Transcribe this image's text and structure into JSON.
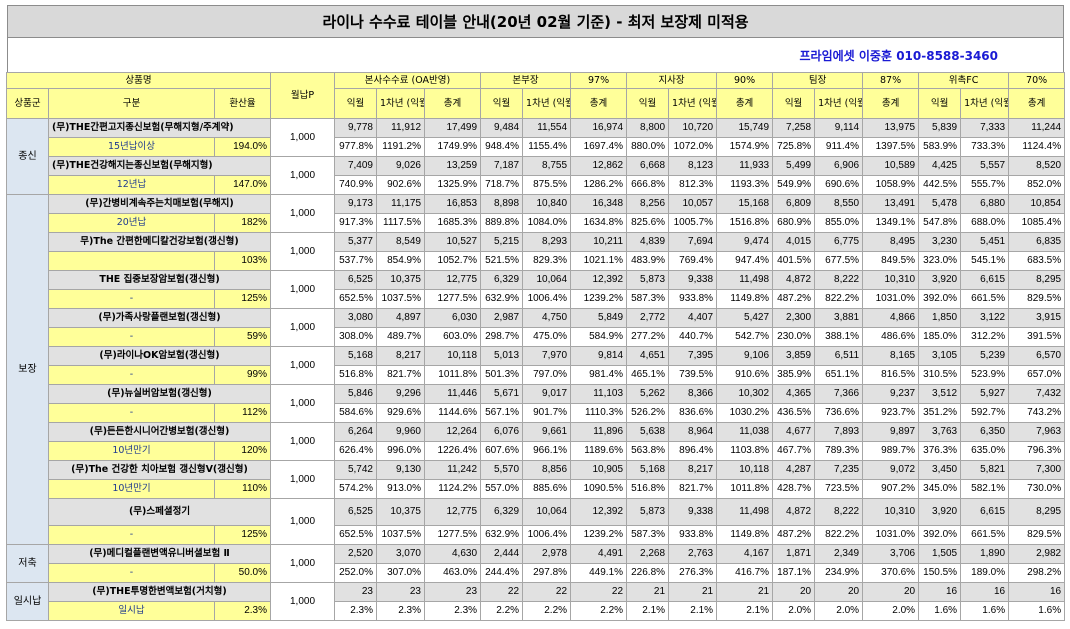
{
  "title": "라이나 수수료 테이블 안내(20년 02월 기준) - 최저 보장제 미적용",
  "contact": "프라임에셋 이중훈 010-8588-3460",
  "header": {
    "product_name": "상품명",
    "monthly_p": "월납P",
    "group": "상품군",
    "category": "구분",
    "conversion": "환산율",
    "col_first": "익월",
    "col_year1": "1차년\n(익월포함)",
    "col_total": "총계",
    "levels": [
      {
        "name": "본사수수료 (OA반영)"
      },
      {
        "name": "본부장",
        "rate": "97%"
      },
      {
        "name": "지사장",
        "rate": "90%"
      },
      {
        "name": "팀장",
        "rate": "87%"
      },
      {
        "name": "위촉FC",
        "rate": "70%"
      }
    ]
  },
  "colors": {
    "header_bg": "#ffff99",
    "title_bg": "#d9d9d9",
    "amount_row_bg": "#e1e1e1",
    "group_bg": "#dce6f1",
    "contact_text": "#1a1ad4"
  },
  "groups": [
    {
      "name": "종신",
      "products": [
        {
          "name": "(무)THE간편고지종신보험(무해지형/주계약)",
          "monthly_p": "1,000",
          "term": "15년납이상",
          "rate": "194.0%",
          "amounts": [
            "9,778",
            "11,912",
            "17,499",
            "9,484",
            "11,554",
            "16,974",
            "8,800",
            "10,720",
            "15,749",
            "7,258",
            "9,114",
            "13,975",
            "5,839",
            "7,333",
            "11,244"
          ],
          "percents": [
            "977.8%",
            "1191.2%",
            "1749.9%",
            "948.4%",
            "1155.4%",
            "1697.4%",
            "880.0%",
            "1072.0%",
            "1574.9%",
            "725.8%",
            "911.4%",
            "1397.5%",
            "583.9%",
            "733.3%",
            "1124.4%"
          ]
        },
        {
          "name": "(무)THE건강해지는종신보험(무해지형)",
          "monthly_p": "1,000",
          "term": "12년납",
          "rate": "147.0%",
          "amounts": [
            "7,409",
            "9,026",
            "13,259",
            "7,187",
            "8,755",
            "12,862",
            "6,668",
            "8,123",
            "11,933",
            "5,499",
            "6,906",
            "10,589",
            "4,425",
            "5,557",
            "8,520"
          ],
          "percents": [
            "740.9%",
            "902.6%",
            "1325.9%",
            "718.7%",
            "875.5%",
            "1286.2%",
            "666.8%",
            "812.3%",
            "1193.3%",
            "549.9%",
            "690.6%",
            "1058.9%",
            "442.5%",
            "555.7%",
            "852.0%"
          ]
        }
      ]
    },
    {
      "name": "보장",
      "products": [
        {
          "name": "(무)간병비계속주는치매보험(무해지)",
          "monthly_p": "1,000",
          "term": "20년납",
          "rate": "182%",
          "amounts": [
            "9,173",
            "11,175",
            "16,853",
            "8,898",
            "10,840",
            "16,348",
            "8,256",
            "10,057",
            "15,168",
            "6,809",
            "8,550",
            "13,491",
            "5,478",
            "6,880",
            "10,854"
          ],
          "percents": [
            "917.3%",
            "1117.5%",
            "1685.3%",
            "889.8%",
            "1084.0%",
            "1634.8%",
            "825.6%",
            "1005.7%",
            "1516.8%",
            "680.9%",
            "855.0%",
            "1349.1%",
            "547.8%",
            "688.0%",
            "1085.4%"
          ]
        },
        {
          "name": "무)The 간편한메디칼건강보험(갱신형)",
          "monthly_p": "1,000",
          "term": "",
          "rate": "103%",
          "amounts": [
            "5,377",
            "8,549",
            "10,527",
            "5,215",
            "8,293",
            "10,211",
            "4,839",
            "7,694",
            "9,474",
            "4,015",
            "6,775",
            "8,495",
            "3,230",
            "5,451",
            "6,835"
          ],
          "percents": [
            "537.7%",
            "854.9%",
            "1052.7%",
            "521.5%",
            "829.3%",
            "1021.1%",
            "483.9%",
            "769.4%",
            "947.4%",
            "401.5%",
            "677.5%",
            "849.5%",
            "323.0%",
            "545.1%",
            "683.5%"
          ]
        },
        {
          "name": "THE 집중보장암보험(갱신형)",
          "monthly_p": "1,000",
          "term": "-",
          "rate": "125%",
          "amounts": [
            "6,525",
            "10,375",
            "12,775",
            "6,329",
            "10,064",
            "12,392",
            "5,873",
            "9,338",
            "11,498",
            "4,872",
            "8,222",
            "10,310",
            "3,920",
            "6,615",
            "8,295"
          ],
          "percents": [
            "652.5%",
            "1037.5%",
            "1277.5%",
            "632.9%",
            "1006.4%",
            "1239.2%",
            "587.3%",
            "933.8%",
            "1149.8%",
            "487.2%",
            "822.2%",
            "1031.0%",
            "392.0%",
            "661.5%",
            "829.5%"
          ]
        },
        {
          "name": "(무)가족사랑플랜보험(갱신형)",
          "monthly_p": "1,000",
          "term": "-",
          "rate": "59%",
          "amounts": [
            "3,080",
            "4,897",
            "6,030",
            "2,987",
            "4,750",
            "5,849",
            "2,772",
            "4,407",
            "5,427",
            "2,300",
            "3,881",
            "4,866",
            "1,850",
            "3,122",
            "3,915"
          ],
          "percents": [
            "308.0%",
            "489.7%",
            "603.0%",
            "298.7%",
            "475.0%",
            "584.9%",
            "277.2%",
            "440.7%",
            "542.7%",
            "230.0%",
            "388.1%",
            "486.6%",
            "185.0%",
            "312.2%",
            "391.5%"
          ]
        },
        {
          "name": "(무)라이나OK암보험(갱신형)",
          "monthly_p": "1,000",
          "term": "-",
          "rate": "99%",
          "amounts": [
            "5,168",
            "8,217",
            "10,118",
            "5,013",
            "7,970",
            "9,814",
            "4,651",
            "7,395",
            "9,106",
            "3,859",
            "6,511",
            "8,165",
            "3,105",
            "5,239",
            "6,570"
          ],
          "percents": [
            "516.8%",
            "821.7%",
            "1011.8%",
            "501.3%",
            "797.0%",
            "981.4%",
            "465.1%",
            "739.5%",
            "910.6%",
            "385.9%",
            "651.1%",
            "816.5%",
            "310.5%",
            "523.9%",
            "657.0%"
          ]
        },
        {
          "name": "(무)뉴실버암보험(갱신형)",
          "monthly_p": "1,000",
          "term": "-",
          "rate": "112%",
          "amounts": [
            "5,846",
            "9,296",
            "11,446",
            "5,671",
            "9,017",
            "11,103",
            "5,262",
            "8,366",
            "10,302",
            "4,365",
            "7,366",
            "9,237",
            "3,512",
            "5,927",
            "7,432"
          ],
          "percents": [
            "584.6%",
            "929.6%",
            "1144.6%",
            "567.1%",
            "901.7%",
            "1110.3%",
            "526.2%",
            "836.6%",
            "1030.2%",
            "436.5%",
            "736.6%",
            "923.7%",
            "351.2%",
            "592.7%",
            "743.2%"
          ]
        },
        {
          "name": "(무)든든한시니어간병보험(갱신형)",
          "monthly_p": "1,000",
          "term": "10년만기",
          "rate": "120%",
          "amounts": [
            "6,264",
            "9,960",
            "12,264",
            "6,076",
            "9,661",
            "11,896",
            "5,638",
            "8,964",
            "11,038",
            "4,677",
            "7,893",
            "9,897",
            "3,763",
            "6,350",
            "7,963"
          ],
          "percents": [
            "626.4%",
            "996.0%",
            "1226.4%",
            "607.6%",
            "966.1%",
            "1189.6%",
            "563.8%",
            "896.4%",
            "1103.8%",
            "467.7%",
            "789.3%",
            "989.7%",
            "376.3%",
            "635.0%",
            "796.3%"
          ]
        },
        {
          "name": "(무)The 건강한 치아보험 갱신형V(갱신형)",
          "monthly_p": "1,000",
          "term": "10년만기",
          "rate": "110%",
          "amounts": [
            "5,742",
            "9,130",
            "11,242",
            "5,570",
            "8,856",
            "10,905",
            "5,168",
            "8,217",
            "10,118",
            "4,287",
            "7,235",
            "9,072",
            "3,450",
            "5,821",
            "7,300"
          ],
          "percents": [
            "574.2%",
            "913.0%",
            "1124.2%",
            "557.0%",
            "885.6%",
            "1090.5%",
            "516.8%",
            "821.7%",
            "1011.8%",
            "428.7%",
            "723.5%",
            "907.2%",
            "345.0%",
            "582.1%",
            "730.0%"
          ]
        },
        {
          "name": "(무)스페셜정기",
          "monthly_p": "1,000",
          "term": "-",
          "rate": "125%",
          "amounts": [
            "6,525",
            "10,375",
            "12,775",
            "6,329",
            "10,064",
            "12,392",
            "5,873",
            "9,338",
            "11,498",
            "4,872",
            "8,222",
            "10,310",
            "3,920",
            "6,615",
            "8,295"
          ],
          "percents": [
            "652.5%",
            "1037.5%",
            "1277.5%",
            "632.9%",
            "1006.4%",
            "1239.2%",
            "587.3%",
            "933.8%",
            "1149.8%",
            "487.2%",
            "822.2%",
            "1031.0%",
            "392.0%",
            "661.5%",
            "829.5%"
          ]
        }
      ]
    },
    {
      "name": "저축",
      "products": [
        {
          "name": "(무)메디컬플랜변액유니버셜보험 Ⅱ",
          "monthly_p": "1,000",
          "term": "-",
          "rate": "50.0%",
          "amounts": [
            "2,520",
            "3,070",
            "4,630",
            "2,444",
            "2,978",
            "4,491",
            "2,268",
            "2,763",
            "4,167",
            "1,871",
            "2,349",
            "3,706",
            "1,505",
            "1,890",
            "2,982"
          ],
          "percents": [
            "252.0%",
            "307.0%",
            "463.0%",
            "244.4%",
            "297.8%",
            "449.1%",
            "226.8%",
            "276.3%",
            "416.7%",
            "187.1%",
            "234.9%",
            "370.6%",
            "150.5%",
            "189.0%",
            "298.2%"
          ]
        }
      ]
    },
    {
      "name": "일시납",
      "products": [
        {
          "name": "(무)THE투명한변액보험(거치형)",
          "monthly_p": "1,000",
          "term": "일시납",
          "rate": "2.3%",
          "amounts": [
            "23",
            "23",
            "23",
            "22",
            "22",
            "22",
            "21",
            "21",
            "21",
            "20",
            "20",
            "20",
            "16",
            "16",
            "16"
          ],
          "percents": [
            "2.3%",
            "2.3%",
            "2.3%",
            "2.2%",
            "2.2%",
            "2.2%",
            "2.1%",
            "2.1%",
            "2.1%",
            "2.0%",
            "2.0%",
            "2.0%",
            "1.6%",
            "1.6%",
            "1.6%"
          ]
        }
      ]
    }
  ]
}
